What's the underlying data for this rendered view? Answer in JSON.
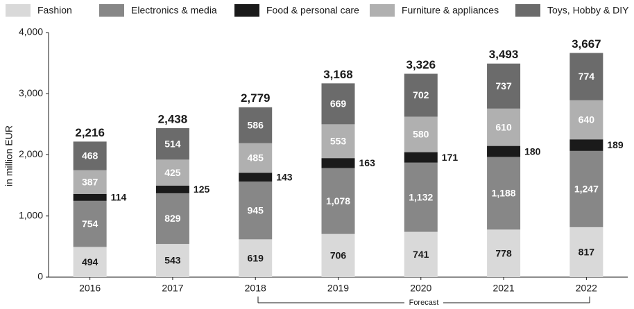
{
  "chart_data": {
    "type": "stacked-bar",
    "categories": [
      "2016",
      "2017",
      "2018",
      "2019",
      "2020",
      "2021",
      "2022"
    ],
    "y_label": "in million EUR",
    "ylim": [
      0,
      4000
    ],
    "yticks": [
      0,
      {
        "value": 1000,
        "label": "1,000"
      },
      {
        "value": 2000,
        "label": "2,000"
      },
      {
        "value": 3000,
        "label": "3,000"
      },
      {
        "value": 4000,
        "label": "4,000"
      }
    ],
    "series": [
      {
        "name": "Fashion",
        "color": "#d9d9d9",
        "values": [
          494,
          543,
          619,
          706,
          741,
          778,
          817
        ]
      },
      {
        "name": "Electronics & media",
        "color": "#878787",
        "values": [
          754,
          829,
          945,
          1078,
          1132,
          1188,
          1247
        ],
        "value_labels": [
          "754",
          "829",
          "945",
          "1,078",
          "1,132",
          "1,188",
          "1,247"
        ]
      },
      {
        "name": "Food & personal care",
        "color": "#1a1a1a",
        "values": [
          114,
          125,
          143,
          163,
          171,
          180,
          189
        ]
      },
      {
        "name": "Furniture & appliances",
        "color": "#b0b0b0",
        "values": [
          387,
          425,
          485,
          553,
          580,
          610,
          640
        ]
      },
      {
        "name": "Toys, Hobby & DIY",
        "color": "#6b6b6b",
        "values": [
          468,
          514,
          586,
          669,
          702,
          737,
          774
        ]
      }
    ],
    "totals": [
      {
        "value": 2216,
        "label": "2,216"
      },
      {
        "value": 2438,
        "label": "2,438"
      },
      {
        "value": 2779,
        "label": "2,779"
      },
      {
        "value": 3168,
        "label": "3,168"
      },
      {
        "value": 3326,
        "label": "3,326"
      },
      {
        "value": 3493,
        "label": "3,493"
      },
      {
        "value": 3667,
        "label": "3,667"
      }
    ],
    "annotation": "Forecast"
  }
}
